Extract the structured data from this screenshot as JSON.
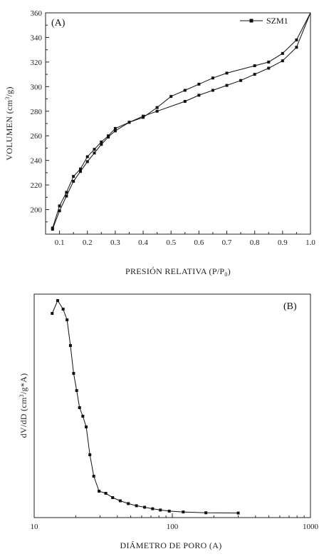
{
  "chart_data": [
    {
      "type": "line",
      "panel_label": "(A)",
      "xlabel_main": "PRESIÓN RELATIVA (P/P",
      "xlabel_sub": "0",
      "xlabel_end": ")",
      "ylabel_pre": "VOLUMEN (cm",
      "ylabel_sup": "3",
      "ylabel_post": "/g)",
      "xlim": [
        0.05,
        1.0
      ],
      "ylim": [
        180,
        360
      ],
      "x_ticks": [
        0.1,
        0.2,
        0.3,
        0.4,
        0.5,
        0.6,
        0.7,
        0.8,
        0.9,
        1.0
      ],
      "x_tick_labels": [
        "0.1",
        "0.2",
        "0.3",
        "0.4",
        "0.5",
        "0.6",
        "0.7",
        "0.8",
        "0.9",
        "1.0"
      ],
      "y_ticks": [
        200,
        220,
        240,
        260,
        280,
        300,
        320,
        340,
        360
      ],
      "y_tick_labels": [
        "200",
        "220",
        "240",
        "260",
        "280",
        "300",
        "320",
        "340",
        "360"
      ],
      "legend": "top-right",
      "series": [
        {
          "name": "SZM1",
          "x": [
            0.075,
            0.1,
            0.125,
            0.15,
            0.175,
            0.2,
            0.225,
            0.25,
            0.275,
            0.3,
            0.35,
            0.4,
            0.45,
            0.55,
            0.6,
            0.65,
            0.7,
            0.75,
            0.8,
            0.85,
            0.9,
            0.95,
            1.0
          ],
          "y": [
            184,
            199,
            211,
            223,
            231,
            239,
            246,
            253,
            259,
            264,
            271,
            276,
            280,
            288,
            293,
            297,
            301,
            305,
            310,
            315,
            321,
            332,
            360
          ]
        },
        {
          "name": "",
          "x": [
            0.075,
            0.1,
            0.125,
            0.15,
            0.175,
            0.2,
            0.225,
            0.25,
            0.275,
            0.3,
            0.35,
            0.4,
            0.45,
            0.5,
            0.55,
            0.6,
            0.65,
            0.7,
            0.8,
            0.85,
            0.9,
            0.95,
            1.0
          ],
          "y": [
            185,
            203,
            214,
            227,
            233,
            243,
            249,
            255,
            260,
            266,
            271,
            275,
            283,
            292,
            297,
            302,
            307,
            311,
            317,
            320,
            327,
            338,
            360
          ]
        }
      ]
    },
    {
      "type": "line",
      "panel_label": "(B)",
      "xlabel": "DIÁMETRO DE PORO (A)",
      "ylabel_pre": "dV/dD  (cm",
      "ylabel_sup": "3",
      "ylabel_post": "/g*A)",
      "xscale": "log",
      "xlim": [
        10,
        1000
      ],
      "ylim": [
        0,
        1
      ],
      "x_ticks": [
        10,
        100,
        1000
      ],
      "x_tick_labels": [
        "10",
        "100",
        "1000"
      ],
      "series": [
        {
          "name": "",
          "x": [
            13.5,
            14.8,
            16.2,
            17.3,
            18.3,
            19.3,
            20.3,
            21.3,
            22.5,
            23.8,
            25.3,
            27.0,
            29.5,
            33.0,
            37.0,
            42.0,
            48.0,
            55.0,
            63.0,
            72.0,
            82.0,
            95.0,
            120.0,
            175.0,
            300.0
          ],
          "y": [
            0.94,
            1.0,
            0.96,
            0.91,
            0.79,
            0.66,
            0.58,
            0.5,
            0.46,
            0.41,
            0.28,
            0.18,
            0.11,
            0.1,
            0.08,
            0.065,
            0.052,
            0.042,
            0.035,
            0.028,
            0.022,
            0.017,
            0.013,
            0.009,
            0.008
          ]
        }
      ]
    }
  ]
}
